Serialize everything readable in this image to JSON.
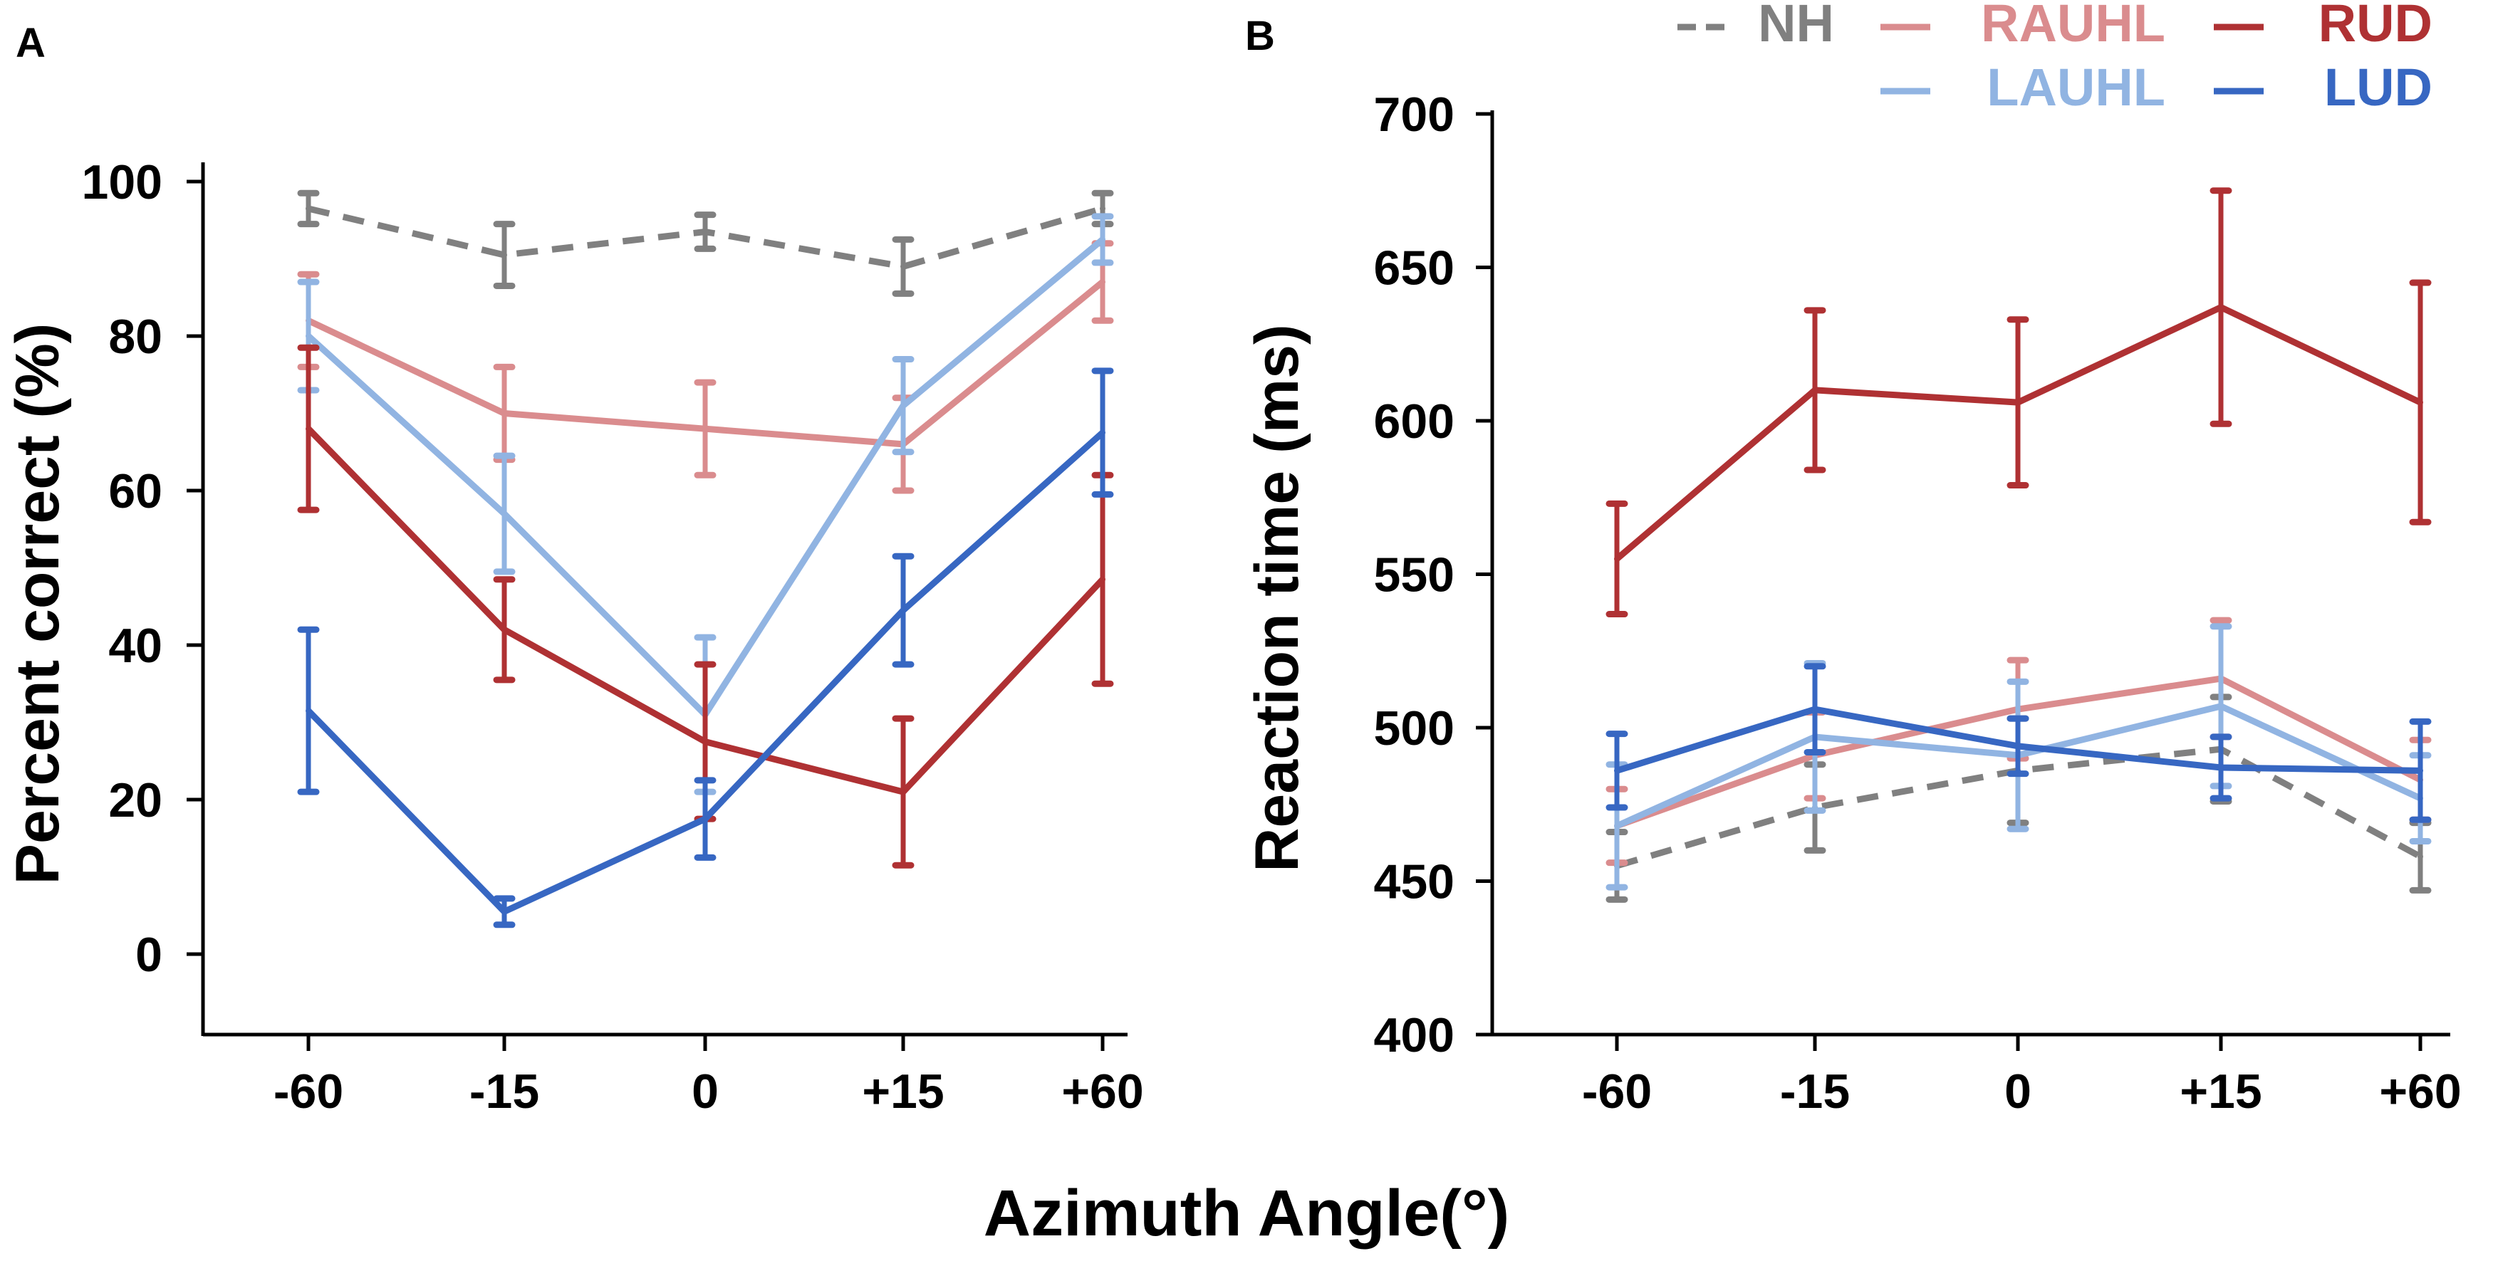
{
  "figure": {
    "shared_xlabel": "Azimuth Angle(°)"
  },
  "legend": {
    "items": [
      {
        "name": "NH",
        "color": "#808080",
        "dash": true
      },
      {
        "name": "RAUHL",
        "color": "#DA8C8E",
        "dash": false
      },
      {
        "name": "RUD",
        "color": "#AF3133",
        "dash": false
      },
      {
        "name": "LAUHL",
        "color": "#91B4E2",
        "dash": false
      },
      {
        "name": "LUD",
        "color": "#3767C2",
        "dash": false
      }
    ]
  },
  "chart_data": [
    {
      "panel": "A",
      "type": "line",
      "title": "",
      "xlabel": "",
      "ylabel": "Percent correct (%)",
      "categories": [
        "-60",
        "-15",
        "0",
        "+15",
        "+60"
      ],
      "ylim": [
        -10,
        100
      ],
      "yticks": [
        0,
        20,
        40,
        60,
        80,
        100
      ],
      "series": [
        {
          "name": "NH",
          "color": "#808080",
          "dash": true,
          "values": [
            96.5,
            90.5,
            93.5,
            89,
            96.5
          ],
          "err": [
            2,
            4,
            2.2,
            3.5,
            2
          ]
        },
        {
          "name": "RAUHL",
          "color": "#DA8C8E",
          "dash": false,
          "values": [
            82,
            70,
            68,
            66,
            87
          ],
          "err": [
            6,
            6,
            6,
            6,
            5
          ]
        },
        {
          "name": "LAUHL",
          "color": "#91B4E2",
          "dash": false,
          "values": [
            80,
            57,
            31,
            71,
            92.5
          ],
          "err": [
            7,
            7.5,
            10,
            6,
            3
          ]
        },
        {
          "name": "RUD",
          "color": "#AF3133",
          "dash": false,
          "values": [
            68,
            42,
            27.5,
            21,
            48.5
          ],
          "err": [
            10.5,
            6.5,
            10,
            9.5,
            13.5
          ]
        },
        {
          "name": "LUD",
          "color": "#3767C2",
          "dash": false,
          "values": [
            31.5,
            5.5,
            17.5,
            44.5,
            67.5
          ],
          "err": [
            10.5,
            1.7,
            5,
            7,
            8
          ]
        }
      ]
    },
    {
      "panel": "B",
      "type": "line",
      "title": "",
      "xlabel": "",
      "ylabel": "Reaction time (ms)",
      "categories": [
        "-60",
        "-15",
        "0",
        "+15",
        "+60"
      ],
      "ylim": [
        400,
        700
      ],
      "yticks": [
        400,
        450,
        500,
        550,
        600,
        650,
        700
      ],
      "series": [
        {
          "name": "NH",
          "color": "#808080",
          "dash": true,
          "values": [
            455,
            474,
            486,
            493,
            458
          ],
          "err": [
            11,
            14,
            17,
            17,
            11
          ]
        },
        {
          "name": "RAUHL",
          "color": "#DA8C8E",
          "dash": false,
          "values": [
            468,
            491,
            506,
            516,
            483
          ],
          "err": [
            12,
            14,
            16,
            19,
            13
          ]
        },
        {
          "name": "LAUHL",
          "color": "#91B4E2",
          "dash": false,
          "values": [
            468,
            497,
            491,
            507,
            477
          ],
          "err": [
            20,
            24,
            24,
            26,
            14
          ]
        },
        {
          "name": "RUD",
          "color": "#AF3133",
          "dash": false,
          "values": [
            555,
            610,
            606,
            637,
            606
          ],
          "err": [
            18,
            26,
            27,
            38,
            39
          ]
        },
        {
          "name": "LUD",
          "color": "#3767C2",
          "dash": false,
          "values": [
            486,
            506,
            494,
            487,
            486
          ],
          "err": [
            12,
            14,
            9,
            10,
            16
          ]
        }
      ]
    }
  ]
}
